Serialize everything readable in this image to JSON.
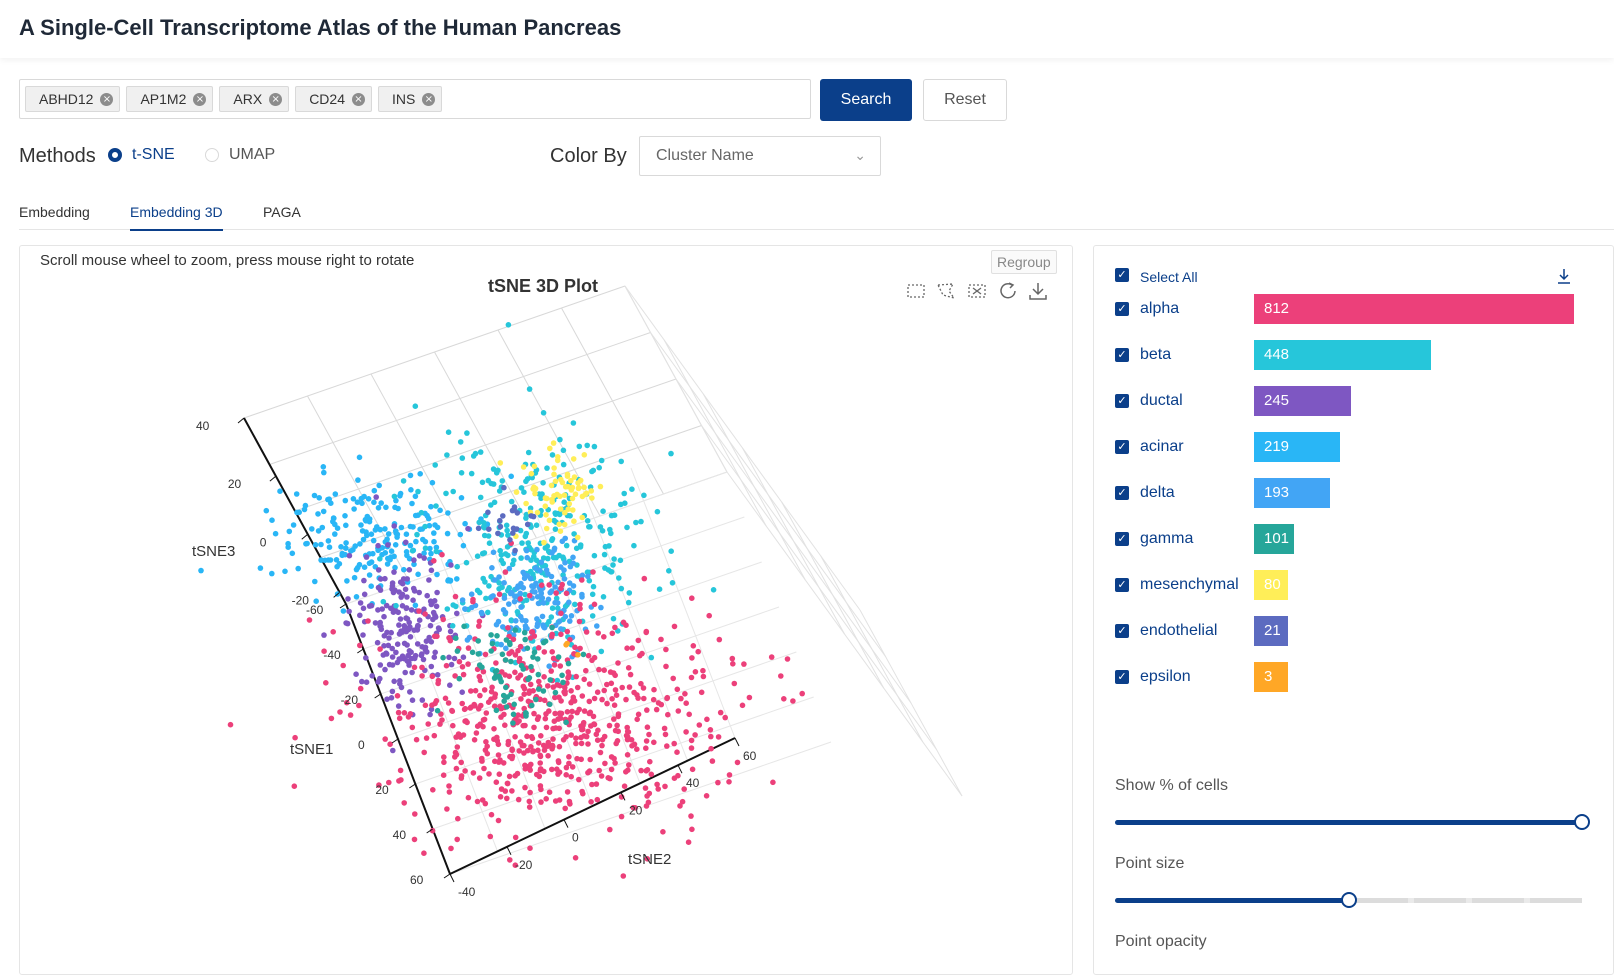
{
  "app": {
    "title": "A Single-Cell Transcriptome Atlas of the Human Pancreas"
  },
  "search": {
    "tags": [
      "ABHD12",
      "AP1M2",
      "ARX",
      "CD24",
      "INS"
    ],
    "search_label": "Search",
    "reset_label": "Reset"
  },
  "methods": {
    "label": "Methods",
    "options": [
      "t-SNE",
      "UMAP"
    ],
    "selected": "t-SNE"
  },
  "color_by": {
    "label": "Color By",
    "value": "Cluster Name"
  },
  "tabs": [
    "Embedding",
    "Embedding 3D",
    "PAGA"
  ],
  "active_tab": "Embedding 3D",
  "plot": {
    "hint": "Scroll mouse wheel to zoom, press mouse right to rotate",
    "regroup_label": "Regroup",
    "title": "tSNE 3D Plot",
    "axis_labels": {
      "tsne1": "tSNE1",
      "tsne2": "tSNE2",
      "tsne3": "tSNE3"
    },
    "tsne3_ticks": [
      "40",
      "20",
      "0",
      "-20"
    ],
    "tsne1_ticks": [
      "-60",
      "-40",
      "-20",
      "0",
      "20",
      "40",
      "60"
    ],
    "tsne2_ticks": [
      "-40",
      "-20",
      "0",
      "20",
      "40",
      "60"
    ],
    "toolbar_icons": [
      "box-select-icon",
      "lasso-select-icon",
      "clear-selection-icon",
      "refresh-icon",
      "download-icon"
    ]
  },
  "clusters": {
    "select_all_label": "Select All",
    "items": [
      {
        "name": "alpha",
        "count": "812",
        "color": "#ec407a",
        "frac": 1.0
      },
      {
        "name": "beta",
        "count": "448",
        "color": "#26c6da",
        "frac": 0.552
      },
      {
        "name": "ductal",
        "count": "245",
        "color": "#7e57c2",
        "frac": 0.302
      },
      {
        "name": "acinar",
        "count": "219",
        "color": "#29b6f6",
        "frac": 0.27
      },
      {
        "name": "delta",
        "count": "193",
        "color": "#42a5f5",
        "frac": 0.238
      },
      {
        "name": "gamma",
        "count": "101",
        "color": "#26a69a",
        "frac": 0.124
      },
      {
        "name": "mesenchymal",
        "count": "80",
        "color": "#ffee58",
        "frac": 0.099
      },
      {
        "name": "endothelial",
        "count": "21",
        "color": "#5c6bc0",
        "frac": 0.026
      },
      {
        "name": "epsilon",
        "count": "3",
        "color": "#ffa726",
        "frac": 0.004
      }
    ]
  },
  "sliders": {
    "show_cells": {
      "label": "Show % of cells",
      "value_frac": 1.0
    },
    "point_size": {
      "label": "Point size",
      "value_frac": 0.5
    },
    "point_opacity": {
      "label": "Point opacity"
    }
  }
}
